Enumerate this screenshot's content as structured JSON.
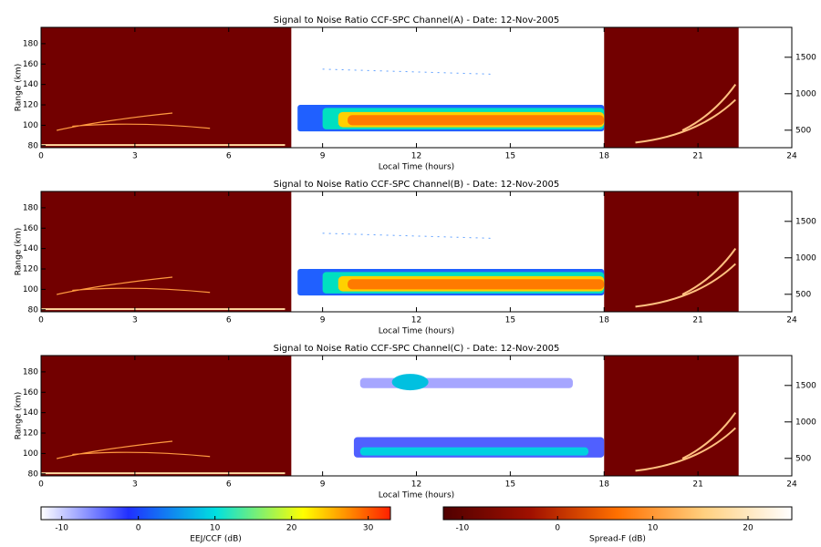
{
  "chart_data": [
    {
      "type": "heatmap",
      "title": "Signal to Noise Ratio CCF-SPC Channel(A) - Date: 12-Nov-2005",
      "x_label": "Local Time (hours)",
      "y_label": "Range (km)",
      "xlim": [
        0,
        24
      ],
      "xticks": [
        0,
        3,
        6,
        9,
        12,
        15,
        18,
        21,
        24
      ],
      "ylim": [
        78,
        196
      ],
      "yticks": [
        80,
        100,
        120,
        140,
        160,
        180
      ],
      "y2lim": [
        260,
        1910
      ],
      "y2ticks": [
        500,
        1000,
        1500
      ]
    },
    {
      "type": "heatmap",
      "title": "Signal to Noise Ratio CCF-SPC Channel(B) - Date: 12-Nov-2005",
      "x_label": "Local Time (hours)",
      "y_label": "Range (km)",
      "xlim": [
        0,
        24
      ],
      "xticks": [
        0,
        3,
        6,
        9,
        12,
        15,
        18,
        21,
        24
      ],
      "ylim": [
        78,
        196
      ],
      "yticks": [
        80,
        100,
        120,
        140,
        160,
        180
      ],
      "y2lim": [
        260,
        1910
      ],
      "y2ticks": [
        500,
        1000,
        1500
      ]
    },
    {
      "type": "heatmap",
      "title": "Signal to Noise Ratio CCF-SPC Channel(C) - Date: 12-Nov-2005",
      "x_label": "Local Time (hours)",
      "y_label": "Range (km)",
      "xlim": [
        0,
        24
      ],
      "xticks": [
        0,
        3,
        6,
        9,
        12,
        15,
        18,
        21,
        24
      ],
      "ylim": [
        78,
        196
      ],
      "yticks": [
        80,
        100,
        120,
        140,
        160,
        180
      ],
      "y2lim": [
        260,
        1910
      ],
      "y2ticks": [
        500,
        1000,
        1500
      ]
    },
    {
      "type": "colorbar",
      "label": "EEJ/CCF (dB)",
      "xlim": [
        -12.7,
        32.9
      ],
      "xticks": [
        -10,
        0,
        10,
        20,
        30
      ],
      "colors": [
        "#ffffff",
        "#2030ff",
        "#00e0e0",
        "#ffff00",
        "#ff2000"
      ]
    },
    {
      "type": "colorbar",
      "label": "Spread-F (dB)",
      "xlim": [
        -12,
        24.6
      ],
      "xticks": [
        -10,
        0,
        10,
        20
      ],
      "colors": [
        "#500000",
        "#a01000",
        "#ff7000",
        "#ffd080",
        "#ffffff"
      ]
    }
  ]
}
